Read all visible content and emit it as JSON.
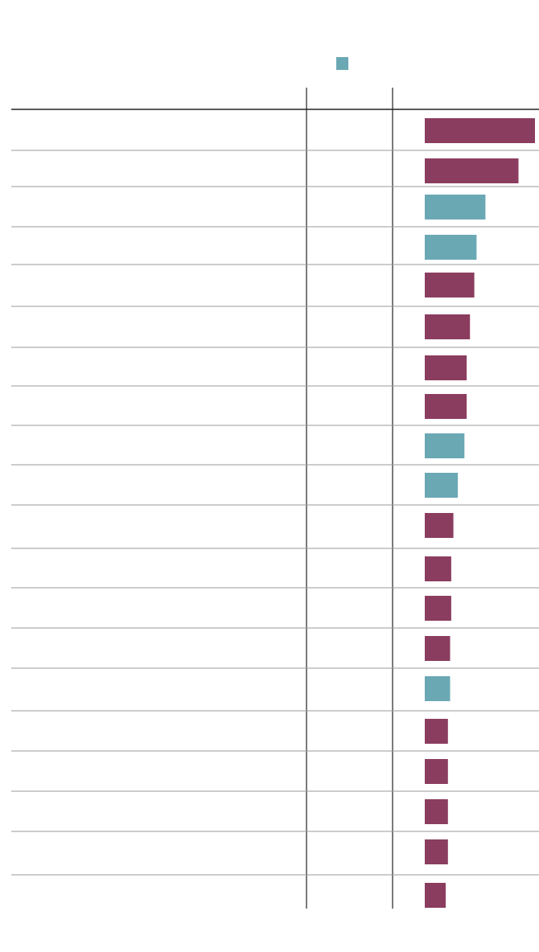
{
  "chart_data": {
    "type": "bar",
    "orientation": "horizontal",
    "title": "",
    "xlabel": "",
    "ylabel": "",
    "legend": {
      "placement": "top",
      "entries": [
        {
          "color": "#6aa8b4"
        }
      ]
    },
    "colors": {
      "primary": "#8b3d5f",
      "secondary": "#6aa8b4"
    },
    "xlim": [
      0,
      100
    ],
    "values": [
      100,
      85,
      55,
      47,
      45,
      41,
      38,
      38,
      36,
      30,
      26,
      24,
      24,
      23,
      23,
      21,
      21,
      21,
      21,
      19
    ],
    "series_index": [
      0,
      0,
      1,
      1,
      0,
      0,
      0,
      0,
      1,
      1,
      0,
      0,
      0,
      0,
      1,
      0,
      0,
      0,
      0,
      0
    ],
    "grid": false
  }
}
